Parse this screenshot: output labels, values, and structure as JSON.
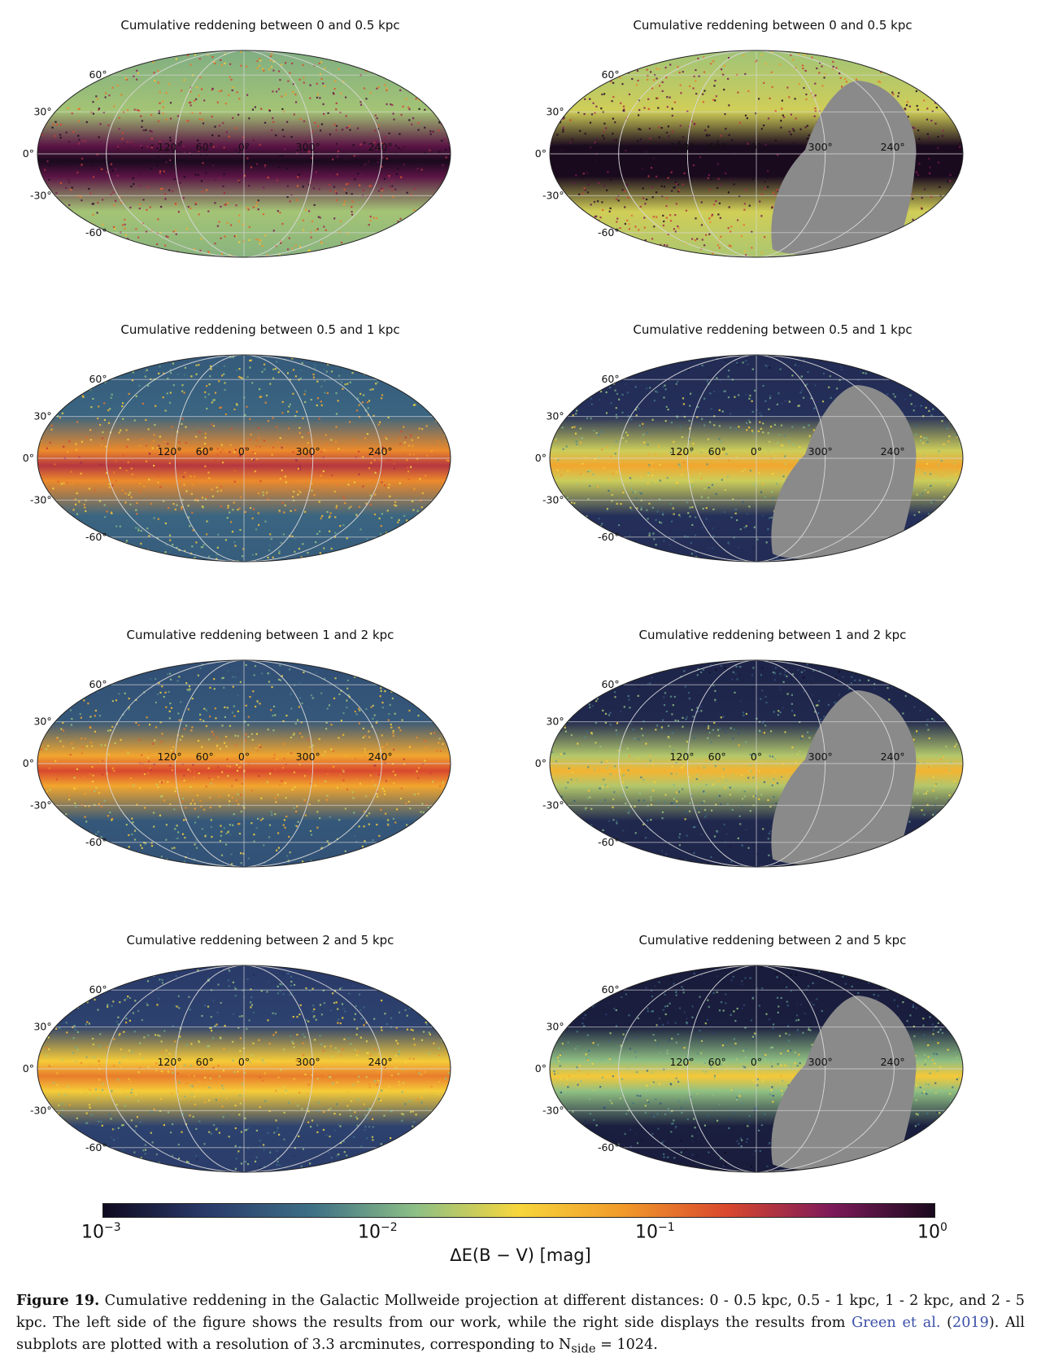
{
  "panels": [
    {
      "title": "Cumulative reddening between 0 and 0.5 kpc",
      "source": "this-work",
      "level": 0.62
    },
    {
      "title": "Cumulative reddening between 0 and 0.5 kpc",
      "source": "green2019",
      "level": 0.7
    },
    {
      "title": "Cumulative reddening between 0.5 and 1 kpc",
      "source": "this-work",
      "level": 0.35
    },
    {
      "title": "Cumulative reddening between 0.5 and 1 kpc",
      "source": "green2019",
      "level": 0.15
    },
    {
      "title": "Cumulative reddening between 1 and 2 kpc",
      "source": "this-work",
      "level": 0.3
    },
    {
      "title": "Cumulative reddening between 1 and 2 kpc",
      "source": "green2019",
      "level": 0.12
    },
    {
      "title": "Cumulative reddening between 2 and 5 kpc",
      "source": "this-work",
      "level": 0.22
    },
    {
      "title": "Cumulative reddening between 2 and 5 kpc",
      "source": "green2019",
      "level": 0.08
    }
  ],
  "axes": {
    "lat_labels": [
      "60°",
      "30°",
      "0°",
      "-30°",
      "-60°"
    ],
    "lon_labels": [
      "120°",
      "60°",
      "0°",
      "300°",
      "240°"
    ],
    "projection": "Mollweide"
  },
  "colorbar": {
    "ticks": [
      {
        "base": "10",
        "exp": "−3"
      },
      {
        "base": "10",
        "exp": "−2"
      },
      {
        "base": "10",
        "exp": "−1"
      },
      {
        "base": "10",
        "exp": "0"
      }
    ],
    "label": "ΔE(B − V) [mag]",
    "scale": "log",
    "range": [
      0.001,
      1
    ],
    "colormap": [
      "#0f0a20",
      "#2a3a6a",
      "#3d6f86",
      "#8cbf86",
      "#f7d63c",
      "#f19a2a",
      "#d9482e",
      "#7e1a5a",
      "#1a0a1e"
    ]
  },
  "masked_color": "#8a8a8a",
  "caption": {
    "label": "Figure 19.",
    "text1": "Cumulative reddening in the Galactic Mollweide projection at different distances: 0 - 0.5 kpc, 0.5 - 1 kpc, 1 - 2 kpc, and 2 - 5 kpc. The left side of the figure shows the results from our work, while the right side displays the results from ",
    "cite_author": "Green et al.",
    "cite_open": " (",
    "cite_year": "2019",
    "text2": "). All subplots are plotted with a resolution of 3.3 arcminutes, corresponding to N",
    "sub": "side",
    "text3": " = 1024."
  }
}
